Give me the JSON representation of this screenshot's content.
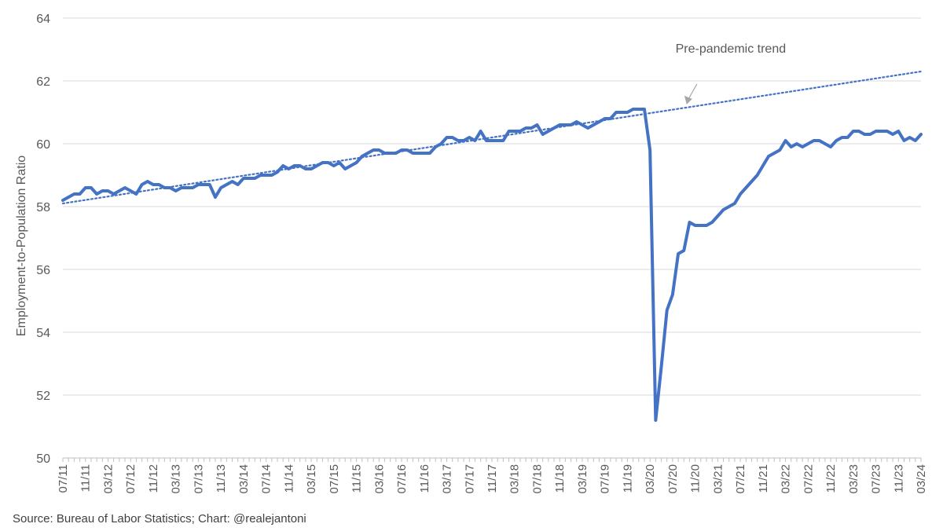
{
  "source_note": "Source: Bureau of Labor Statistics; Chart: @realejantoni",
  "colors": {
    "series": "#4472C4",
    "grid": "#d9d9d9",
    "text": "#595959",
    "annotation_arrow": "#a6a6a6"
  },
  "chart_data": {
    "type": "line",
    "title": "",
    "ylabel": "Employment-to-Population Ratio",
    "xlabel": "",
    "ylim": [
      50,
      64
    ],
    "yticks": [
      50,
      52,
      54,
      56,
      58,
      60,
      62,
      64
    ],
    "grid": true,
    "x_start": "07/11",
    "x_end": "03/24",
    "xtick_labels": [
      "07/11",
      "11/11",
      "03/12",
      "07/12",
      "11/12",
      "03/13",
      "07/13",
      "11/13",
      "03/14",
      "07/14",
      "11/14",
      "03/15",
      "07/15",
      "11/15",
      "03/16",
      "07/16",
      "11/16",
      "03/17",
      "07/17",
      "11/17",
      "03/18",
      "07/18",
      "11/18",
      "03/19",
      "07/19",
      "11/19",
      "03/20",
      "07/20",
      "11/20",
      "03/21",
      "07/21",
      "11/21",
      "03/22",
      "07/22",
      "11/22",
      "03/23",
      "07/23",
      "11/23",
      "03/24"
    ],
    "series": [
      {
        "kind": "actual",
        "values": [
          58.2,
          58.3,
          58.4,
          58.4,
          58.6,
          58.6,
          58.4,
          58.5,
          58.5,
          58.4,
          58.5,
          58.6,
          58.5,
          58.4,
          58.7,
          58.8,
          58.7,
          58.7,
          58.6,
          58.6,
          58.5,
          58.6,
          58.6,
          58.6,
          58.7,
          58.7,
          58.7,
          58.3,
          58.6,
          58.7,
          58.8,
          58.7,
          58.9,
          58.9,
          58.9,
          59.0,
          59.0,
          59.0,
          59.1,
          59.3,
          59.2,
          59.3,
          59.3,
          59.2,
          59.2,
          59.3,
          59.4,
          59.4,
          59.3,
          59.4,
          59.2,
          59.3,
          59.4,
          59.6,
          59.7,
          59.8,
          59.8,
          59.7,
          59.7,
          59.7,
          59.8,
          59.8,
          59.7,
          59.7,
          59.7,
          59.7,
          59.9,
          60.0,
          60.2,
          60.2,
          60.1,
          60.1,
          60.2,
          60.1,
          60.4,
          60.1,
          60.1,
          60.1,
          60.1,
          60.4,
          60.4,
          60.4,
          60.5,
          60.5,
          60.6,
          60.3,
          60.4,
          60.5,
          60.6,
          60.6,
          60.6,
          60.7,
          60.6,
          60.5,
          60.6,
          60.7,
          60.8,
          60.8,
          61.0,
          61.0,
          61.0,
          61.1,
          61.1,
          61.1,
          59.8,
          51.2,
          52.9,
          54.7,
          55.2,
          56.5,
          56.6,
          57.5,
          57.4,
          57.4,
          57.4,
          57.5,
          57.7,
          57.9,
          58.0,
          58.1,
          58.4,
          58.6,
          58.8,
          59.0,
          59.3,
          59.6,
          59.7,
          59.8,
          60.1,
          59.9,
          60.0,
          59.9,
          60.0,
          60.1,
          60.1,
          60.0,
          59.9,
          60.1,
          60.2,
          60.2,
          60.4,
          60.4,
          60.3,
          60.3,
          60.4,
          60.4,
          60.4,
          60.3,
          60.4,
          60.1,
          60.2,
          60.1,
          60.3
        ]
      },
      {
        "name": "Pre-pandemic trend",
        "kind": "trend",
        "start": 58.1,
        "end": 62.3
      }
    ],
    "annotations": [
      {
        "text": "Pre-pandemic trend",
        "points_to": "trend"
      }
    ]
  }
}
